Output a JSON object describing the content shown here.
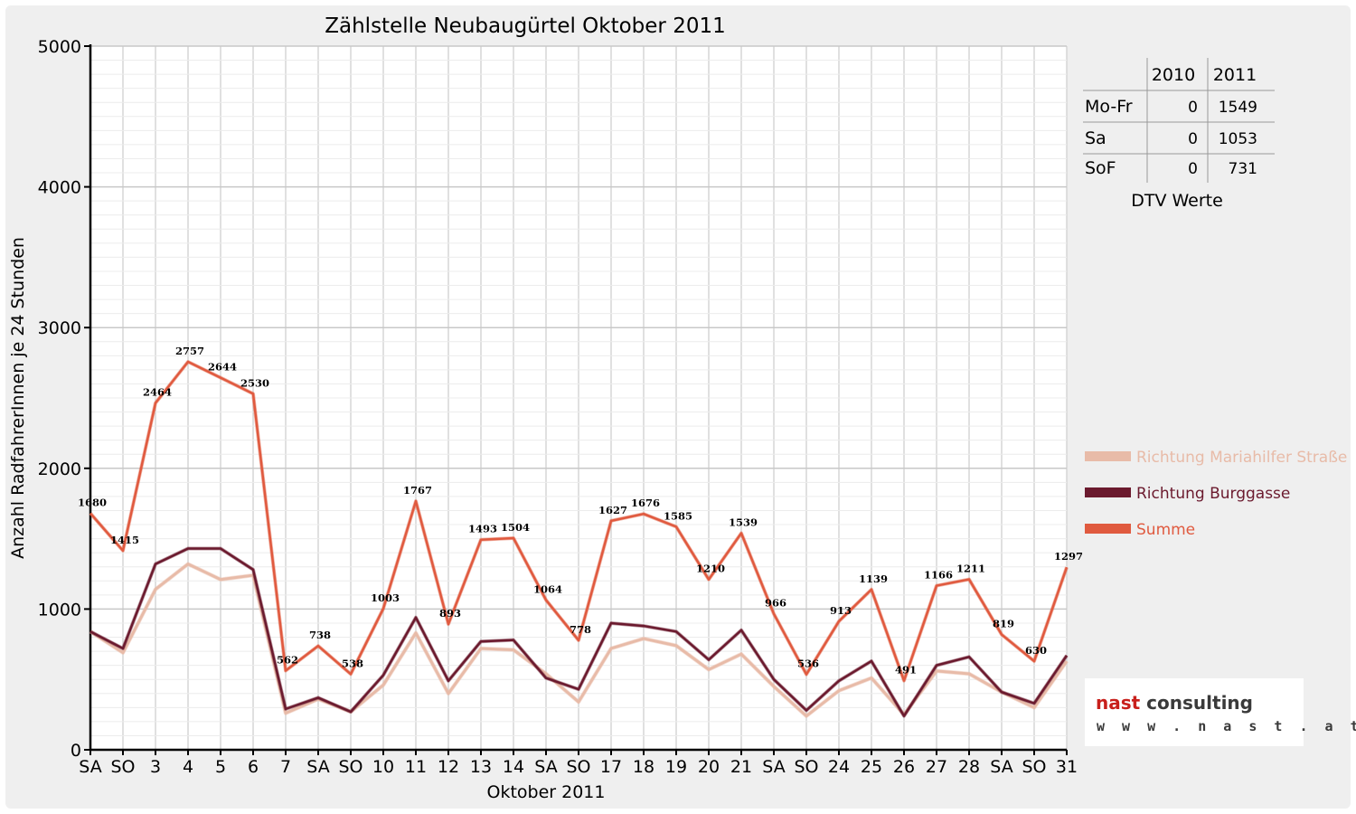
{
  "chart_data": {
    "type": "line",
    "title": "Zählstelle Neubaugürtel Oktober 2011",
    "xlabel": "Oktober 2011",
    "ylabel": "Anzahl RadfahrerInnen je 24 Stunden",
    "ylim": [
      0,
      5000
    ],
    "yticks": [
      "0",
      "1000",
      "2000",
      "3000",
      "4000",
      "5000"
    ],
    "grid": true,
    "legend_position": "right",
    "categories": [
      "SA",
      "SO",
      "3",
      "4",
      "5",
      "6",
      "7",
      "SA",
      "SO",
      "10",
      "11",
      "12",
      "13",
      "14",
      "SA",
      "SO",
      "17",
      "18",
      "19",
      "20",
      "21",
      "SA",
      "SO",
      "24",
      "25",
      "26",
      "27",
      "28",
      "SA",
      "SO",
      "31"
    ],
    "category_colors": [
      "#000000",
      "#e00000",
      "#000000",
      "#000000",
      "#000000",
      "#000000",
      "#000000",
      "#000000",
      "#e00000",
      "#000000",
      "#000000",
      "#000000",
      "#000000",
      "#000000",
      "#000000",
      "#e00000",
      "#000000",
      "#000000",
      "#000000",
      "#000000",
      "#000000",
      "#000000",
      "#e00000",
      "#000000",
      "#000000",
      "#e00000",
      "#000000",
      "#000000",
      "#000000",
      "#e00000",
      "#000000"
    ],
    "series": [
      {
        "name": "Richtung Mariahilfer Straße",
        "color": "#e8bba8",
        "values": [
          840,
          690,
          1140,
          1320,
          1210,
          1240,
          260,
          360,
          270,
          460,
          830,
          400,
          720,
          710,
          540,
          340,
          720,
          790,
          740,
          570,
          680,
          450,
          240,
          420,
          510,
          250,
          560,
          540,
          410,
          300,
          630
        ]
      },
      {
        "name": "Richtung Burggasse",
        "color": "#6b1a2e",
        "values": [
          840,
          720,
          1320,
          1430,
          1430,
          1280,
          290,
          370,
          270,
          530,
          940,
          490,
          770,
          780,
          510,
          430,
          900,
          880,
          840,
          640,
          850,
          500,
          280,
          490,
          630,
          240,
          600,
          660,
          410,
          330,
          670
        ]
      },
      {
        "name": "Summe",
        "color": "#e05a3f",
        "values": [
          1680,
          1415,
          2464,
          2757,
          2644,
          2530,
          562,
          738,
          538,
          1003,
          1767,
          893,
          1493,
          1504,
          1064,
          778,
          1627,
          1676,
          1585,
          1210,
          1539,
          966,
          536,
          913,
          1139,
          491,
          1166,
          1211,
          819,
          630,
          1297
        ]
      }
    ],
    "data_labels": [
      "1680",
      "1415",
      "2464",
      "2757",
      "2644",
      "2530",
      "562",
      "738",
      "538",
      "1003",
      "1767",
      "893",
      "1493",
      "1504",
      "1064",
      "778",
      "1627",
      "1676",
      "1585",
      "1210",
      "1539",
      "966",
      "536",
      "913",
      "1139",
      "491",
      "1166",
      "1211",
      "819",
      "630",
      "1297"
    ]
  },
  "dtv_table": {
    "headers": [
      "",
      "2010",
      "2011"
    ],
    "rows": [
      {
        "label": "Mo-Fr",
        "v2010": "0",
        "v2011": "1549"
      },
      {
        "label": "Sa",
        "v2010": "0",
        "v2011": "1053"
      },
      {
        "label": "SoF",
        "v2010": "0",
        "v2011": "731"
      }
    ],
    "caption": "DTV Werte"
  },
  "logo": {
    "part1": "nast",
    "part2": "consulting",
    "url": "w w w . n a s t . a t",
    "color1": "#c8201c",
    "color2": "#3a3a3a"
  }
}
